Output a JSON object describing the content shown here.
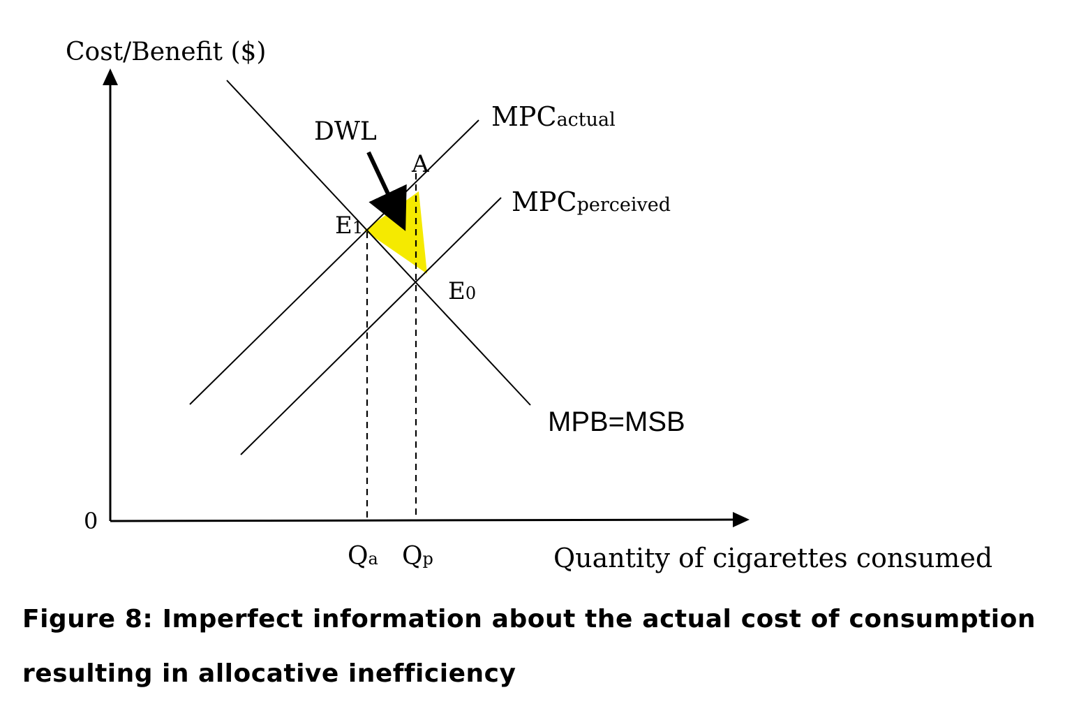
{
  "diagram": {
    "y_axis_label": "Cost/Benefit ($)",
    "x_axis_label": "Quantity of cigarettes consumed",
    "origin_label": "0",
    "curves": {
      "mpc_actual": {
        "main": "MPC",
        "sub": "actual"
      },
      "mpc_perceived": {
        "main": "MPC",
        "sub": "perceived"
      },
      "mpb_msb": "MPB=MSB"
    },
    "points": {
      "e1": {
        "main": "E",
        "sub": "1"
      },
      "e0": {
        "main": "E",
        "sub": "0"
      },
      "a": "A"
    },
    "quantities": {
      "qa": {
        "main": "Q",
        "sub": "a"
      },
      "qp": {
        "main": "Q",
        "sub": "p"
      }
    },
    "dwl_label": "DWL",
    "colors": {
      "dwl_fill": "#f5ea00",
      "line": "#000000"
    }
  },
  "caption": "Figure 8: Imperfect information about the actual cost of consumption resulting in allocative inefficiency"
}
